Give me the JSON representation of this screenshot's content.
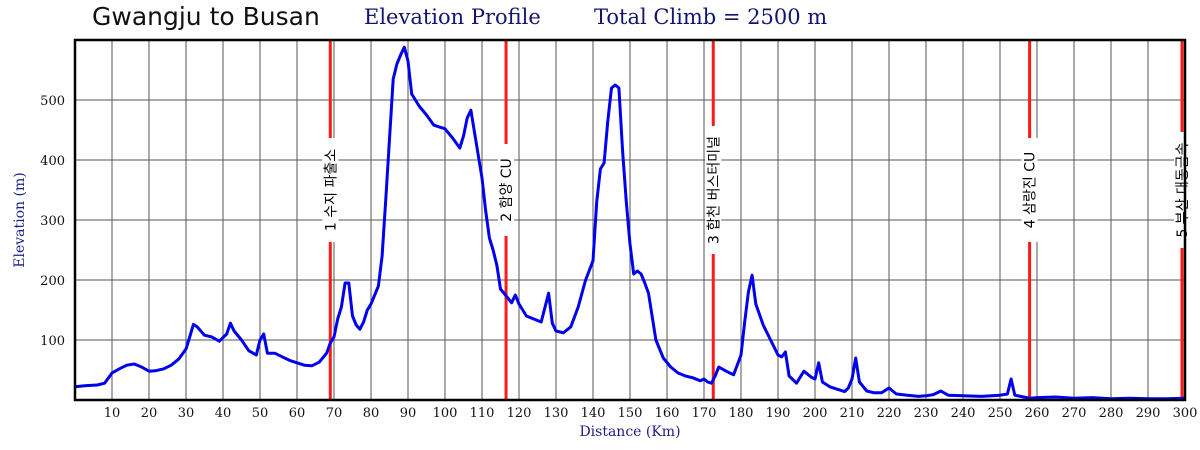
{
  "header": {
    "route": "Gwangju to Busan",
    "profile": "Elevation Profile",
    "climb": "Total Climb = 2500 m"
  },
  "chart_data": {
    "type": "line",
    "xlabel": "Distance (Km)",
    "ylabel": "Elevation (m)",
    "xlim": [
      0,
      300
    ],
    "ylim": [
      0,
      600
    ],
    "grid": true,
    "x_ticks": [
      10,
      20,
      30,
      40,
      50,
      60,
      70,
      80,
      90,
      100,
      110,
      120,
      130,
      140,
      150,
      160,
      170,
      180,
      190,
      200,
      210,
      220,
      230,
      240,
      250,
      260,
      270,
      280,
      290,
      300
    ],
    "y_ticks": [
      100,
      200,
      300,
      400,
      500
    ],
    "series": [
      {
        "color": "#0000ee",
        "points": [
          [
            0,
            22
          ],
          [
            3,
            24
          ],
          [
            6,
            25
          ],
          [
            8,
            28
          ],
          [
            10,
            45
          ],
          [
            12,
            52
          ],
          [
            14,
            58
          ],
          [
            16,
            60
          ],
          [
            18,
            55
          ],
          [
            20,
            48
          ],
          [
            22,
            49
          ],
          [
            24,
            52
          ],
          [
            26,
            58
          ],
          [
            28,
            68
          ],
          [
            30,
            85
          ],
          [
            31,
            105
          ],
          [
            32,
            126
          ],
          [
            33,
            122
          ],
          [
            35,
            108
          ],
          [
            37,
            105
          ],
          [
            39,
            98
          ],
          [
            41,
            110
          ],
          [
            42,
            128
          ],
          [
            43,
            115
          ],
          [
            45,
            100
          ],
          [
            47,
            82
          ],
          [
            49,
            75
          ],
          [
            50,
            100
          ],
          [
            51,
            110
          ],
          [
            52,
            78
          ],
          [
            54,
            78
          ],
          [
            56,
            72
          ],
          [
            58,
            66
          ],
          [
            60,
            62
          ],
          [
            62,
            58
          ],
          [
            64,
            57
          ],
          [
            66,
            63
          ],
          [
            68,
            78
          ],
          [
            69,
            95
          ],
          [
            70,
            105
          ],
          [
            71,
            135
          ],
          [
            72,
            155
          ],
          [
            73,
            195
          ],
          [
            74,
            195
          ],
          [
            75,
            140
          ],
          [
            76,
            125
          ],
          [
            77,
            118
          ],
          [
            78,
            130
          ],
          [
            79,
            150
          ],
          [
            80,
            160
          ],
          [
            81,
            175
          ],
          [
            82,
            190
          ],
          [
            83,
            240
          ],
          [
            84,
            335
          ],
          [
            85,
            435
          ],
          [
            86,
            535
          ],
          [
            87,
            560
          ],
          [
            88,
            575
          ],
          [
            89,
            588
          ],
          [
            90,
            565
          ],
          [
            91,
            510
          ],
          [
            93,
            490
          ],
          [
            95,
            475
          ],
          [
            97,
            458
          ],
          [
            100,
            452
          ],
          [
            102,
            437
          ],
          [
            104,
            420
          ],
          [
            105,
            440
          ],
          [
            106,
            470
          ],
          [
            107,
            483
          ],
          [
            108,
            445
          ],
          [
            110,
            370
          ],
          [
            111,
            315
          ],
          [
            112,
            270
          ],
          [
            113,
            250
          ],
          [
            114,
            225
          ],
          [
            115,
            185
          ],
          [
            117,
            170
          ],
          [
            118,
            162
          ],
          [
            119,
            175
          ],
          [
            120,
            160
          ],
          [
            122,
            140
          ],
          [
            124,
            135
          ],
          [
            126,
            130
          ],
          [
            128,
            178
          ],
          [
            129,
            128
          ],
          [
            130,
            115
          ],
          [
            132,
            112
          ],
          [
            134,
            122
          ],
          [
            136,
            155
          ],
          [
            138,
            200
          ],
          [
            140,
            232
          ],
          [
            141,
            330
          ],
          [
            142,
            385
          ],
          [
            143,
            395
          ],
          [
            144,
            465
          ],
          [
            145,
            520
          ],
          [
            146,
            525
          ],
          [
            147,
            520
          ],
          [
            148,
            415
          ],
          [
            149,
            330
          ],
          [
            150,
            260
          ],
          [
            151,
            210
          ],
          [
            152,
            215
          ],
          [
            153,
            210
          ],
          [
            154,
            195
          ],
          [
            155,
            178
          ],
          [
            157,
            100
          ],
          [
            159,
            70
          ],
          [
            161,
            55
          ],
          [
            163,
            45
          ],
          [
            165,
            40
          ],
          [
            167,
            37
          ],
          [
            169,
            32
          ],
          [
            170,
            35
          ],
          [
            171,
            30
          ],
          [
            172,
            28
          ],
          [
            173,
            40
          ],
          [
            174,
            55
          ],
          [
            176,
            48
          ],
          [
            178,
            42
          ],
          [
            180,
            75
          ],
          [
            181,
            130
          ],
          [
            182,
            180
          ],
          [
            183,
            208
          ],
          [
            184,
            160
          ],
          [
            186,
            125
          ],
          [
            188,
            100
          ],
          [
            190,
            75
          ],
          [
            191,
            72
          ],
          [
            192,
            80
          ],
          [
            193,
            40
          ],
          [
            195,
            28
          ],
          [
            197,
            48
          ],
          [
            199,
            38
          ],
          [
            200,
            35
          ],
          [
            201,
            62
          ],
          [
            202,
            30
          ],
          [
            204,
            22
          ],
          [
            206,
            18
          ],
          [
            208,
            14
          ],
          [
            209,
            20
          ],
          [
            210,
            35
          ],
          [
            211,
            70
          ],
          [
            212,
            30
          ],
          [
            214,
            15
          ],
          [
            216,
            12
          ],
          [
            218,
            12
          ],
          [
            220,
            20
          ],
          [
            222,
            10
          ],
          [
            225,
            8
          ],
          [
            228,
            6
          ],
          [
            230,
            7
          ],
          [
            232,
            9
          ],
          [
            234,
            15
          ],
          [
            236,
            8
          ],
          [
            240,
            7
          ],
          [
            245,
            6
          ],
          [
            250,
            8
          ],
          [
            252,
            10
          ],
          [
            253,
            35
          ],
          [
            254,
            8
          ],
          [
            258,
            3
          ],
          [
            260,
            4
          ],
          [
            265,
            5
          ],
          [
            270,
            3
          ],
          [
            275,
            4
          ],
          [
            280,
            2
          ],
          [
            285,
            3
          ],
          [
            290,
            2
          ],
          [
            295,
            2
          ],
          [
            300,
            3
          ]
        ]
      }
    ],
    "markers": [
      {
        "x": 69,
        "label": "1 수지 파출소",
        "color": "#ff1a1a"
      },
      {
        "x": 116.5,
        "label": "2 함양 CU",
        "color": "#ff1a1a"
      },
      {
        "x": 172.5,
        "label": "3 합천 버스터미널",
        "color": "#ff1a1a"
      },
      {
        "x": 258,
        "label": "4 삼랑진 CU",
        "color": "#ff1a1a"
      },
      {
        "x": 300,
        "label": "5 부산 대동금속",
        "color": "#ff1a1a"
      }
    ]
  }
}
